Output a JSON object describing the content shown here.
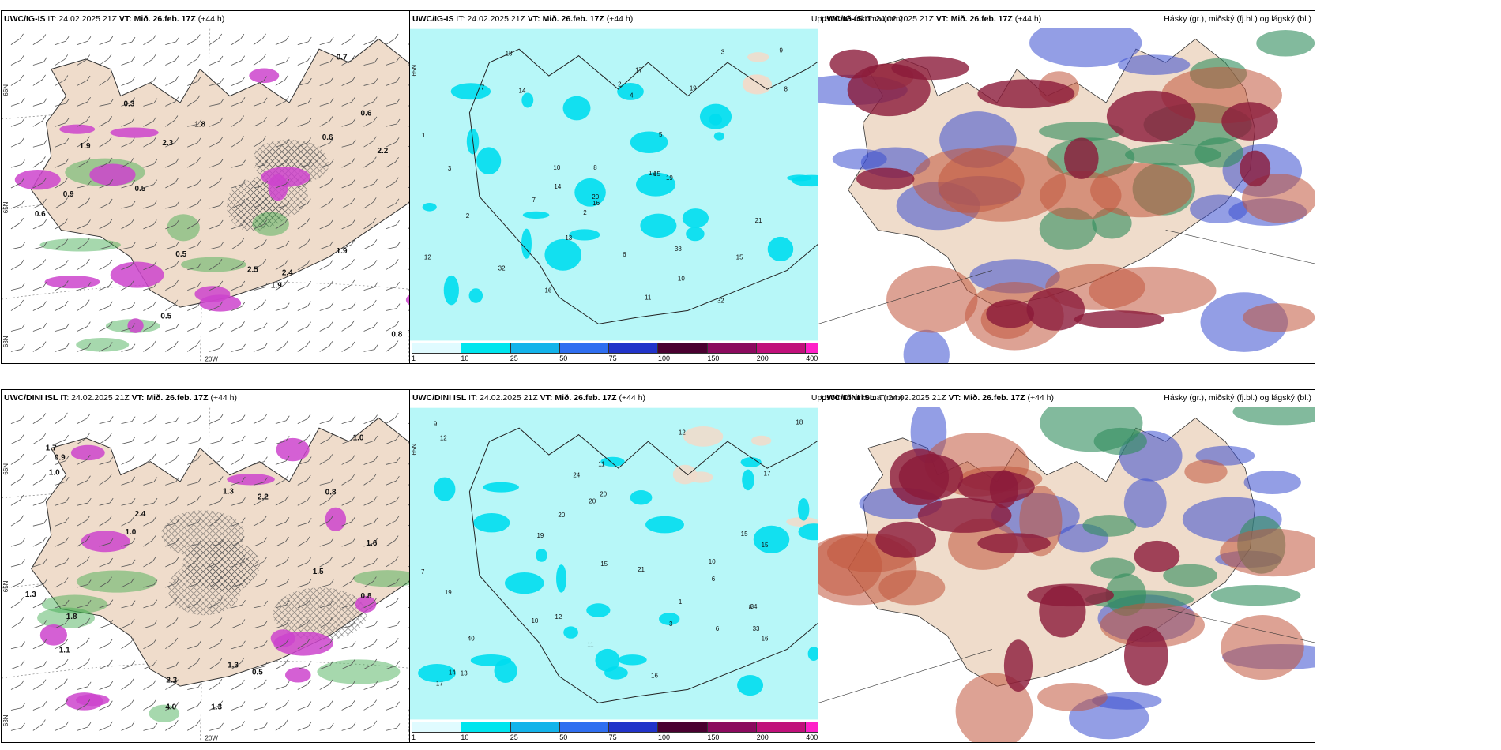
{
  "panels": [
    {
      "id": "p1",
      "model": "UWC/IG-IS",
      "it": "IT: 24.02.2025 21Z",
      "vt": "VT: Mið. 26.feb. 17Z",
      "lead": "(+44 h)",
      "right": "",
      "kind": "wind",
      "lat_labels": [
        "66N",
        "65N",
        "63N"
      ],
      "lon_labels": [
        "20W",
        "15W"
      ],
      "values": [
        "0.5",
        "0.9",
        "0.6",
        "1.9",
        "1.8",
        "0.8",
        "0.7",
        "1.9",
        "2.5",
        "2.4",
        "0.5",
        "0.3",
        "0.6",
        "2.2",
        "1.8",
        "0.5",
        "3.3",
        "2.3",
        "0.8",
        "0.6",
        "0.5",
        "1.9"
      ]
    },
    {
      "id": "p2",
      "model": "UWC/IG-IS",
      "it": "IT: 24.02.2025 21Z",
      "vt": "VT: Mið. 26.feb. 17Z",
      "lead": "(+44 h)",
      "right": "Uppsöfnuð úrkoma (mm)",
      "kind": "precip",
      "lat_labels": [
        "65N"
      ],
      "lon_labels": [],
      "values": [
        "8",
        "1",
        "2",
        "2",
        "3",
        "10",
        "19",
        "15",
        "14",
        "32",
        "29",
        "17",
        "19",
        "18",
        "20",
        "13",
        "15",
        "16",
        "12",
        "21",
        "19",
        "38",
        "32",
        "16",
        "13",
        "9",
        "7",
        "5",
        "4",
        "6",
        "11",
        "12",
        "14",
        "10",
        "8",
        "7",
        "3",
        "2"
      ]
    },
    {
      "id": "p3",
      "model": "UWC/IG-IS",
      "it": "IT: 24.02.2025 21Z",
      "vt": "VT: Mið. 26.feb. 17Z",
      "lead": "(+44 h)",
      "right": "Hásky (gr.), miðský (fj.bl.) og lágský (bl.)",
      "kind": "cloud",
      "lat_labels": [],
      "lon_labels": [],
      "values": []
    },
    {
      "id": "p4",
      "model": "UWC/DINI ISL",
      "it": "IT: 24.02.2025 21Z",
      "vt": "VT: Mið. 26.feb. 17Z",
      "lead": "(+44 h)",
      "right": "",
      "kind": "wind",
      "lat_labels": [
        "66N",
        "65N",
        "63N"
      ],
      "lon_labels": [
        "20W",
        "15W"
      ],
      "values": [
        "2.3",
        "1.8",
        "1.0",
        "2.4",
        "4.0",
        "1.3",
        "1.0",
        "1.3",
        "1.6",
        "1.1",
        "0.5",
        "2.2",
        "1.5",
        "1.6",
        "1.7",
        "1.8",
        "1.3",
        "0.8",
        "0.8",
        "0.9",
        "1.0",
        "0.6",
        "1.3"
      ]
    },
    {
      "id": "p5",
      "model": "UWC/DINI ISL",
      "it": "IT: 24.02.2025 21Z",
      "vt": "VT: Mið. 26.feb. 17Z",
      "lead": "(+44 h)",
      "right": "Uppsöfnuð úrkoma (mm)",
      "kind": "precip",
      "lat_labels": [
        "65N"
      ],
      "lon_labels": [],
      "values": [
        "6",
        "1",
        "2",
        "2",
        "3",
        "23",
        "10",
        "14",
        "24",
        "40",
        "21",
        "20",
        "15",
        "13",
        "20",
        "34",
        "19",
        "15",
        "16",
        "20",
        "17",
        "15",
        "12",
        "16",
        "33",
        "11",
        "19",
        "18",
        "12",
        "9",
        "7",
        "5",
        "4",
        "6",
        "11",
        "12",
        "17",
        "8",
        "10"
      ]
    },
    {
      "id": "p6",
      "model": "UWC/DINI ISL",
      "it": "IT: 24.02.2025 21Z",
      "vt": "VT: Mið. 26.feb. 17Z",
      "lead": "(+44 h)",
      "right": "Hásky (gr.), miðský (fj.bl.) og lágský (bl.)",
      "kind": "cloud",
      "lat_labels": [],
      "lon_labels": [],
      "values": []
    }
  ],
  "colorbar": {
    "labels": [
      "1",
      "10",
      "25",
      "50",
      "75",
      "100",
      "150",
      "200",
      "400"
    ],
    "colors": [
      "#e0fbff",
      "#00e5ee",
      "#13b3ea",
      "#2f6ef0",
      "#2133c9",
      "#4a0030",
      "#8b0a5e",
      "#c0107a",
      "#ff20c8",
      "#f2b8ee"
    ]
  },
  "colors": {
    "land": "#efdccb",
    "sea_precip": "#b7f7f8",
    "precip_hi": "#00ddee",
    "snow": "#cc44cc",
    "rain": "#3aa84a",
    "high_cloud": "#2f8c5c",
    "mid_cloud": "#8b1a3a",
    "low_cloud": "#3a4fd0"
  }
}
